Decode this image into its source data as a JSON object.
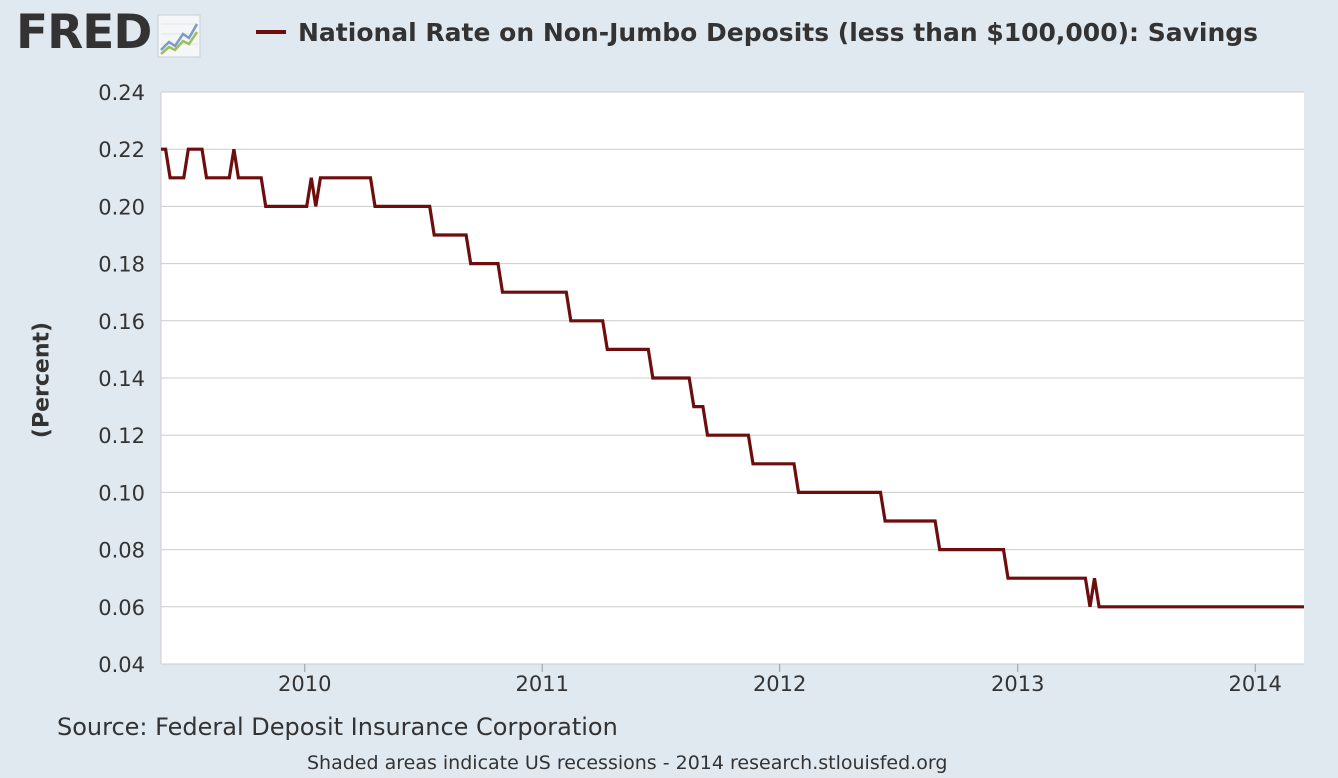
{
  "header": {
    "logo_text": "FRED",
    "logo_icon": "line-chart-icon"
  },
  "colors": {
    "background": "#e1e9f0",
    "plot_background": "#ffffff",
    "gridline": "#cccccc",
    "series": "#6e0d0d",
    "text": "#333333"
  },
  "chart_data": {
    "type": "line",
    "title": "",
    "xlabel": "",
    "ylabel": "(Percent)",
    "ylim": [
      0.04,
      0.24
    ],
    "xlim": [
      "2009-05-25",
      "2014-03-17"
    ],
    "grid": true,
    "legend_position": "top",
    "y_ticks": [
      "0.04",
      "0.06",
      "0.08",
      "0.10",
      "0.12",
      "0.14",
      "0.16",
      "0.18",
      "0.20",
      "0.22",
      "0.24"
    ],
    "x_ticks": [
      "2010",
      "2011",
      "2012",
      "2013",
      "2014"
    ],
    "series": [
      {
        "name": "National Rate on Non-Jumbo Deposits (less than $100,000): Savings",
        "color": "#6e0d0d",
        "points": [
          [
            "2009-05-25",
            0.22
          ],
          [
            "2009-06-01",
            0.22
          ],
          [
            "2009-06-08",
            0.21
          ],
          [
            "2009-06-29",
            0.21
          ],
          [
            "2009-07-06",
            0.22
          ],
          [
            "2009-07-27",
            0.22
          ],
          [
            "2009-08-03",
            0.21
          ],
          [
            "2009-09-07",
            0.21
          ],
          [
            "2009-09-14",
            0.22
          ],
          [
            "2009-09-21",
            0.21
          ],
          [
            "2009-10-26",
            0.21
          ],
          [
            "2009-11-02",
            0.2
          ],
          [
            "2010-01-04",
            0.2
          ],
          [
            "2010-01-11",
            0.21
          ],
          [
            "2010-01-18",
            0.2
          ],
          [
            "2010-01-25",
            0.21
          ],
          [
            "2010-04-12",
            0.21
          ],
          [
            "2010-04-19",
            0.2
          ],
          [
            "2010-07-12",
            0.2
          ],
          [
            "2010-07-19",
            0.19
          ],
          [
            "2010-09-06",
            0.19
          ],
          [
            "2010-09-13",
            0.18
          ],
          [
            "2010-10-25",
            0.18
          ],
          [
            "2010-11-01",
            0.17
          ],
          [
            "2011-02-07",
            0.17
          ],
          [
            "2011-02-14",
            0.16
          ],
          [
            "2011-04-04",
            0.16
          ],
          [
            "2011-04-11",
            0.15
          ],
          [
            "2011-06-13",
            0.15
          ],
          [
            "2011-06-20",
            0.14
          ],
          [
            "2011-08-15",
            0.14
          ],
          [
            "2011-08-22",
            0.13
          ],
          [
            "2011-09-05",
            0.13
          ],
          [
            "2011-09-12",
            0.12
          ],
          [
            "2011-11-14",
            0.12
          ],
          [
            "2011-11-21",
            0.11
          ],
          [
            "2012-01-23",
            0.11
          ],
          [
            "2012-01-30",
            0.1
          ],
          [
            "2012-06-04",
            0.1
          ],
          [
            "2012-06-11",
            0.09
          ],
          [
            "2012-08-27",
            0.09
          ],
          [
            "2012-09-03",
            0.08
          ],
          [
            "2012-12-10",
            0.08
          ],
          [
            "2012-12-17",
            0.07
          ],
          [
            "2013-04-15",
            0.07
          ],
          [
            "2013-04-22",
            0.06
          ],
          [
            "2013-04-29",
            0.07
          ],
          [
            "2013-05-06",
            0.06
          ],
          [
            "2014-03-17",
            0.06
          ]
        ]
      }
    ]
  },
  "source": "Source: Federal Deposit Insurance Corporation",
  "footnote": "Shaded areas indicate US recessions - 2014 research.stlouisfed.org"
}
